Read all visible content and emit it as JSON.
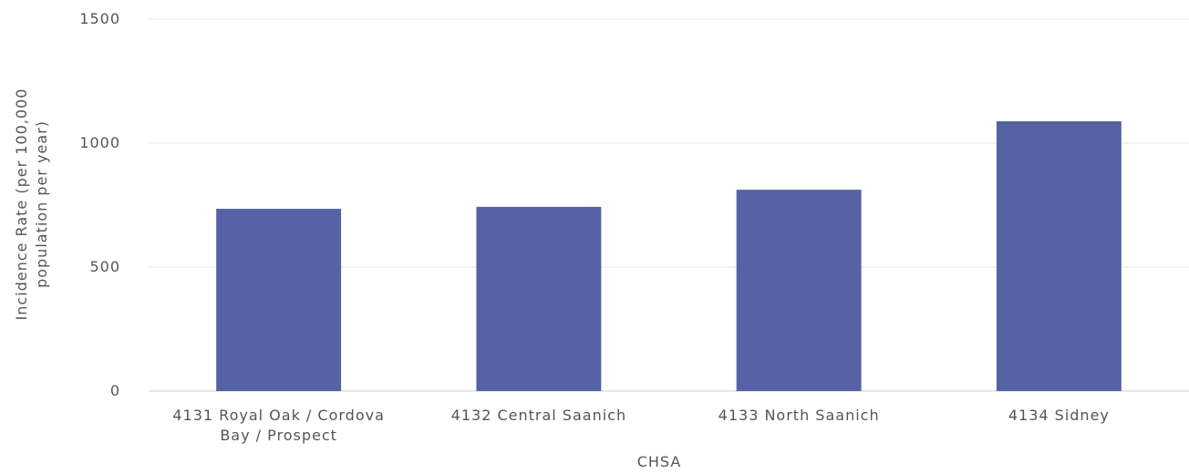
{
  "chart_data": {
    "type": "bar",
    "categories": [
      "4131 Royal Oak / Cordova Bay / Prospect",
      "4132 Central Saanich",
      "4133 North Saanich",
      "4134 Sidney"
    ],
    "values": [
      735,
      743,
      812,
      1088
    ],
    "color": "#5563a5",
    "x_label": "CHSA",
    "y_label": "Incidence Rate (per 100,000 population per year)",
    "ylim": [
      0,
      1500
    ],
    "yticks": [
      0,
      500,
      1000,
      1500
    ],
    "grid": true
  }
}
